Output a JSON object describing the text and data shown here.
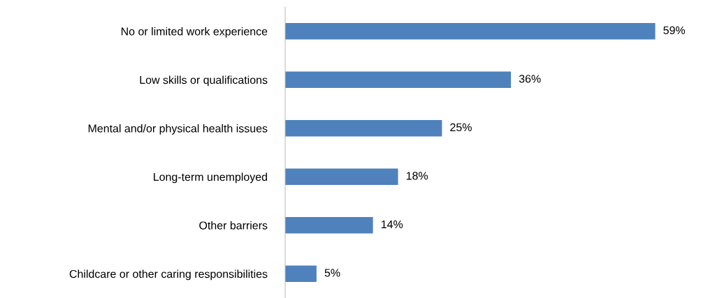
{
  "chart_data": {
    "type": "bar",
    "orientation": "horizontal",
    "data_labels": true,
    "grid": false,
    "legend": false,
    "categories": [
      "No or limited work experience",
      "Low skills or qualifications",
      "Mental and/or physical health issues",
      "Long-term unemployed",
      "Other barriers",
      "Childcare or other caring responsibilities"
    ],
    "values": [
      59,
      36,
      25,
      18,
      14,
      5
    ],
    "value_labels": [
      "59%",
      "36%",
      "25%",
      "18%",
      "14%",
      "5%"
    ],
    "color": "#4f81bd"
  }
}
